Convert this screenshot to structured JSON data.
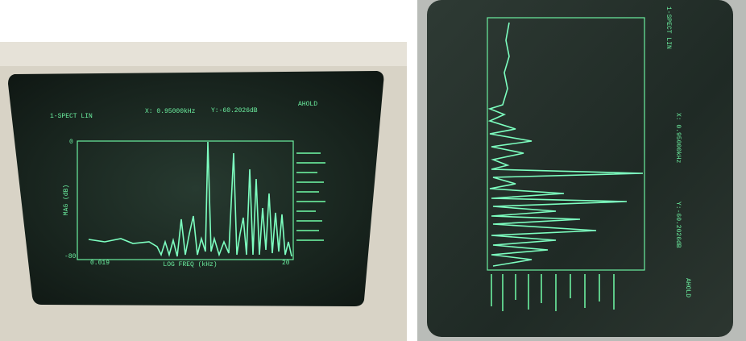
{
  "left_screen": {
    "mode": "1-SPECT LIN",
    "x_readout": "X: 0.95000kHz",
    "y_readout": "Y:-60.2026dB",
    "hold": "AHOLD",
    "y_top": "0",
    "y_label": "MAG (dB)",
    "y_bottom": "-80",
    "x_start": "0.019",
    "x_label": "LOG FREQ (kHz)",
    "x_end": "20"
  },
  "right_screen": {
    "mode": "1-SPECT LIN",
    "x_readout": "X: 0.95000kHz",
    "y_readout": "Y:-60.2026dB",
    "hold": "AHOLD"
  }
}
